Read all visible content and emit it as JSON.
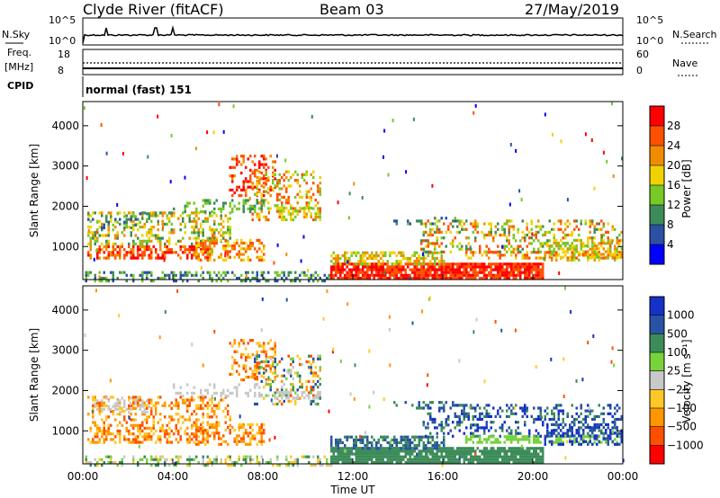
{
  "header": {
    "station": "Clyde River (fitACF)",
    "beam": "Beam 03",
    "date": "27/May/2019"
  },
  "noise_panel": {
    "left_label": "N.Sky",
    "right_label": "N.Search",
    "left_ticks": [
      "10^5",
      "10^0"
    ],
    "right_ticks": [
      "10^5",
      "10^0"
    ]
  },
  "freq_panel": {
    "left_label_1": "Freq.",
    "left_label_2": "[MHz]",
    "right_label": "Nave",
    "left_ticks": [
      "18",
      "8"
    ],
    "right_ticks": [
      "60",
      "0"
    ]
  },
  "cpid": {
    "label": "CPID",
    "value": "normal (fast) 151"
  },
  "colors": {
    "power": [
      "#0000ff",
      "#2a52a4",
      "#3c8c5a",
      "#78c828",
      "#f0d200",
      "#f08c00",
      "#ff5000",
      "#ff0000"
    ],
    "velocity": [
      "#ff0000",
      "#ff5000",
      "#ff9600",
      "#ffc828",
      "#c8c8c8",
      "#78d23c",
      "#3c8c5a",
      "#2a52a4",
      "#1432c8"
    ]
  },
  "chart_data": [
    {
      "type": "heatmap",
      "panel": "power",
      "ylabel": "Slant Range [km]",
      "ylim": [
        180,
        4600
      ],
      "y_ticks": [
        "1000",
        "2000",
        "3000",
        "4000"
      ],
      "colorbar_label": "Power [dB]",
      "colorbar_ticks": [
        "4",
        "8",
        "12",
        "16",
        "20",
        "24",
        "28"
      ],
      "x_ticks": [
        "00:00",
        "04:00",
        "08:00",
        "12:00",
        "16:00",
        "20:00",
        "00:00"
      ]
    },
    {
      "type": "heatmap",
      "panel": "velocity",
      "ylabel": "Slant Range [km]",
      "ylim": [
        180,
        4600
      ],
      "y_ticks": [
        "1000",
        "2000",
        "3000",
        "4000"
      ],
      "colorbar_label": "Velocity [m s⁻¹]",
      "colorbar_ticks": [
        "1000",
        "500",
        "100",
        "25",
        "−25",
        "−100",
        "−500",
        "−1000"
      ],
      "x_ticks": [
        "00:00",
        "04:00",
        "08:00",
        "12:00",
        "16:00",
        "20:00",
        "00:00"
      ],
      "xlabel": "Time UT"
    }
  ]
}
